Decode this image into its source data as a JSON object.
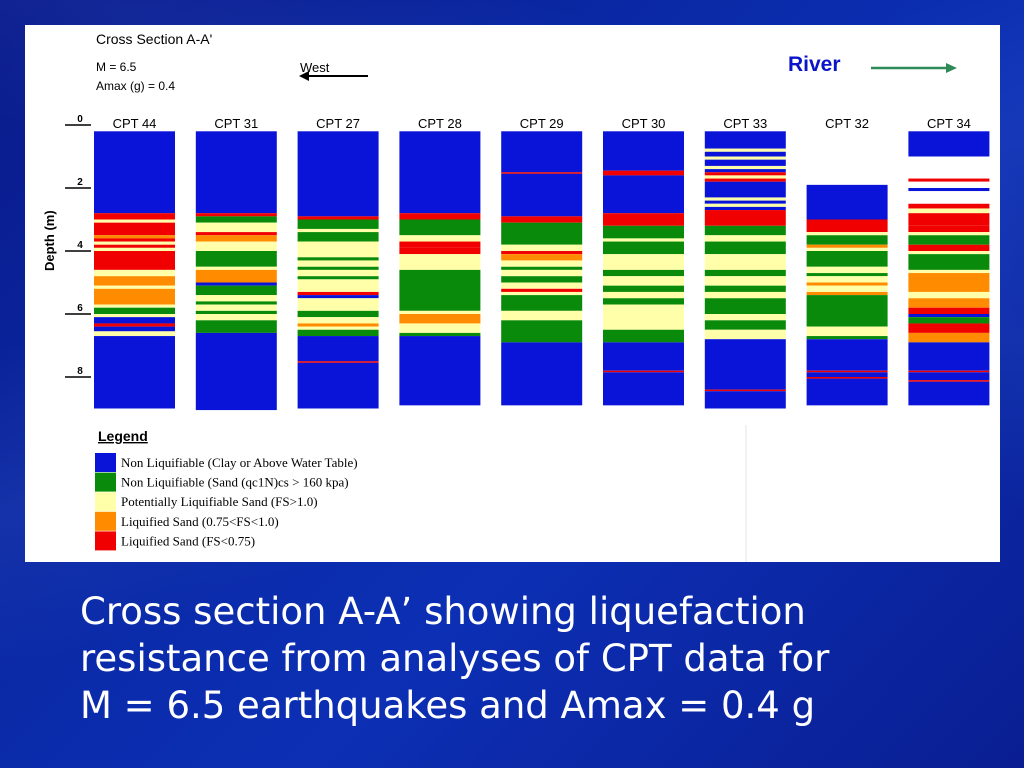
{
  "figure": {
    "title": "Cross Section A-A'",
    "magnitude_label": "M = 6.5",
    "amax_label": "Amax (g) = 0.4",
    "direction_label": "West",
    "river_label": "River",
    "depth_axis_label": "Depth (m)",
    "depth_ticks": [
      "0",
      "2",
      "4",
      "6",
      "8"
    ]
  },
  "colors": {
    "B": "#0a14d8",
    "G": "#0a8a0a",
    "Y": "#ffffaa",
    "O": "#ff8c00",
    "R": "#f00000",
    "river_arrow": "#2e8b57"
  },
  "legend": {
    "title": "Legend",
    "items": [
      {
        "key": "B",
        "label": "Non Liquifiable (Clay or Above Water Table)"
      },
      {
        "key": "G",
        "label": "Non Liquifiable (Sand (qc1N)cs > 160 kpa)"
      },
      {
        "key": "Y",
        "label": "Potentially Liquifiable Sand (FS>1.0)"
      },
      {
        "key": "O",
        "label": "Liquified Sand    (0.75<FS<1.0)"
      },
      {
        "key": "R",
        "label": "Liquified Sand    (FS<0.75)"
      }
    ]
  },
  "chart_data": {
    "type": "table",
    "title": "Cross Section A-A'",
    "ylabel": "Depth (m)",
    "depth_range": [
      0,
      9
    ],
    "units": "m",
    "columns": [
      {
        "name": "CPT 44",
        "top": 0.2,
        "bottom": 9.0,
        "layers": [
          [
            0.2,
            2.8,
            "B"
          ],
          [
            2.8,
            3.0,
            "R"
          ],
          [
            3.0,
            3.1,
            "Y"
          ],
          [
            3.1,
            3.5,
            "R"
          ],
          [
            3.5,
            3.6,
            "O"
          ],
          [
            3.6,
            3.7,
            "R"
          ],
          [
            3.7,
            3.8,
            "Y"
          ],
          [
            3.8,
            3.9,
            "R"
          ],
          [
            3.9,
            4.0,
            "Y"
          ],
          [
            4.0,
            4.6,
            "R"
          ],
          [
            4.6,
            4.8,
            "Y"
          ],
          [
            4.8,
            5.1,
            "O"
          ],
          [
            5.1,
            5.2,
            "Y"
          ],
          [
            5.2,
            5.7,
            "O"
          ],
          [
            5.7,
            5.8,
            "Y"
          ],
          [
            5.8,
            6.0,
            "G"
          ],
          [
            6.0,
            6.1,
            "Y"
          ],
          [
            6.1,
            6.3,
            "B"
          ],
          [
            6.3,
            6.4,
            "R"
          ],
          [
            6.4,
            6.55,
            "B"
          ],
          [
            6.55,
            6.7,
            "Y"
          ],
          [
            6.7,
            9.0,
            "B"
          ]
        ]
      },
      {
        "name": "CPT 31",
        "top": 0.2,
        "bottom": 9.05,
        "layers": [
          [
            0.2,
            2.8,
            "B"
          ],
          [
            2.8,
            2.9,
            "R"
          ],
          [
            2.9,
            3.1,
            "G"
          ],
          [
            3.1,
            3.4,
            "Y"
          ],
          [
            3.4,
            3.5,
            "R"
          ],
          [
            3.5,
            3.7,
            "O"
          ],
          [
            3.7,
            3.8,
            "Y"
          ],
          [
            3.8,
            4.0,
            "Y"
          ],
          [
            4.0,
            4.5,
            "G"
          ],
          [
            4.5,
            4.6,
            "Y"
          ],
          [
            4.6,
            5.0,
            "O"
          ],
          [
            5.0,
            5.1,
            "B"
          ],
          [
            5.1,
            5.4,
            "G"
          ],
          [
            5.4,
            5.6,
            "Y"
          ],
          [
            5.6,
            5.7,
            "G"
          ],
          [
            5.7,
            5.9,
            "Y"
          ],
          [
            5.9,
            6.0,
            "G"
          ],
          [
            6.0,
            6.2,
            "Y"
          ],
          [
            6.2,
            6.6,
            "G"
          ],
          [
            6.6,
            9.05,
            "B"
          ]
        ]
      },
      {
        "name": "CPT 27",
        "top": 0.2,
        "bottom": 9.0,
        "layers": [
          [
            0.2,
            2.9,
            "B"
          ],
          [
            2.9,
            3.0,
            "R"
          ],
          [
            3.0,
            3.3,
            "G"
          ],
          [
            3.3,
            3.4,
            "Y"
          ],
          [
            3.4,
            3.7,
            "G"
          ],
          [
            3.7,
            3.9,
            "Y"
          ],
          [
            3.9,
            4.2,
            "Y"
          ],
          [
            4.2,
            4.3,
            "G"
          ],
          [
            4.3,
            4.5,
            "Y"
          ],
          [
            4.5,
            4.6,
            "G"
          ],
          [
            4.6,
            4.8,
            "Y"
          ],
          [
            4.8,
            4.9,
            "G"
          ],
          [
            4.9,
            5.3,
            "Y"
          ],
          [
            5.3,
            5.4,
            "R"
          ],
          [
            5.4,
            5.5,
            "B"
          ],
          [
            5.5,
            5.9,
            "Y"
          ],
          [
            5.9,
            6.1,
            "G"
          ],
          [
            6.1,
            6.3,
            "Y"
          ],
          [
            6.3,
            6.4,
            "O"
          ],
          [
            6.4,
            6.5,
            "Y"
          ],
          [
            6.5,
            6.7,
            "G"
          ],
          [
            6.7,
            7.5,
            "B"
          ],
          [
            7.5,
            7.55,
            "R"
          ],
          [
            7.55,
            9.0,
            "B"
          ]
        ]
      },
      {
        "name": "CPT 28",
        "top": 0.2,
        "bottom": 8.9,
        "layers": [
          [
            0.2,
            2.8,
            "B"
          ],
          [
            2.8,
            3.0,
            "R"
          ],
          [
            3.0,
            3.5,
            "G"
          ],
          [
            3.5,
            3.7,
            "Y"
          ],
          [
            3.7,
            3.9,
            "R"
          ],
          [
            3.9,
            4.1,
            "R"
          ],
          [
            4.1,
            4.6,
            "Y"
          ],
          [
            4.6,
            5.9,
            "G"
          ],
          [
            5.9,
            6.0,
            "Y"
          ],
          [
            6.0,
            6.3,
            "O"
          ],
          [
            6.3,
            6.6,
            "Y"
          ],
          [
            6.6,
            6.7,
            "G"
          ],
          [
            6.7,
            8.9,
            "B"
          ]
        ]
      },
      {
        "name": "CPT 29",
        "top": 0.2,
        "bottom": 8.9,
        "layers": [
          [
            0.2,
            1.5,
            "B"
          ],
          [
            1.5,
            1.55,
            "R"
          ],
          [
            1.55,
            2.9,
            "B"
          ],
          [
            2.9,
            3.1,
            "R"
          ],
          [
            3.1,
            3.8,
            "G"
          ],
          [
            3.8,
            4.0,
            "Y"
          ],
          [
            4.0,
            4.1,
            "R"
          ],
          [
            4.1,
            4.3,
            "O"
          ],
          [
            4.3,
            4.5,
            "Y"
          ],
          [
            4.5,
            4.6,
            "G"
          ],
          [
            4.6,
            4.8,
            "Y"
          ],
          [
            4.8,
            5.0,
            "G"
          ],
          [
            5.0,
            5.2,
            "Y"
          ],
          [
            5.2,
            5.3,
            "R"
          ],
          [
            5.3,
            5.4,
            "Y"
          ],
          [
            5.4,
            5.9,
            "G"
          ],
          [
            5.9,
            6.2,
            "Y"
          ],
          [
            6.2,
            6.9,
            "G"
          ],
          [
            6.9,
            8.9,
            "B"
          ]
        ]
      },
      {
        "name": "CPT 30",
        "top": 0.2,
        "bottom": 8.9,
        "layers": [
          [
            0.2,
            1.45,
            "B"
          ],
          [
            1.45,
            1.6,
            "R"
          ],
          [
            1.6,
            2.8,
            "B"
          ],
          [
            2.8,
            3.2,
            "R"
          ],
          [
            3.2,
            3.6,
            "G"
          ],
          [
            3.6,
            3.7,
            "Y"
          ],
          [
            3.7,
            4.1,
            "G"
          ],
          [
            4.1,
            4.6,
            "Y"
          ],
          [
            4.6,
            4.8,
            "G"
          ],
          [
            4.8,
            5.1,
            "Y"
          ],
          [
            5.1,
            5.3,
            "G"
          ],
          [
            5.3,
            5.5,
            "Y"
          ],
          [
            5.5,
            5.7,
            "G"
          ],
          [
            5.7,
            6.0,
            "Y"
          ],
          [
            6.0,
            6.5,
            "Y"
          ],
          [
            6.5,
            6.9,
            "G"
          ],
          [
            6.9,
            7.8,
            "B"
          ],
          [
            7.8,
            7.85,
            "R"
          ],
          [
            7.85,
            8.9,
            "B"
          ]
        ]
      },
      {
        "name": "CPT 33",
        "top": 0.2,
        "bottom": 9.0,
        "layers": [
          [
            0.2,
            0.75,
            "B"
          ],
          [
            0.75,
            0.85,
            "Y"
          ],
          [
            0.85,
            1.0,
            "B"
          ],
          [
            1.0,
            1.1,
            "Y"
          ],
          [
            1.1,
            1.3,
            "B"
          ],
          [
            1.3,
            1.4,
            "Y"
          ],
          [
            1.4,
            1.5,
            "B"
          ],
          [
            1.5,
            1.6,
            "R"
          ],
          [
            1.6,
            1.7,
            "Y"
          ],
          [
            1.7,
            1.8,
            "R"
          ],
          [
            1.8,
            2.3,
            "B"
          ],
          [
            2.3,
            2.4,
            "Y"
          ],
          [
            2.4,
            2.5,
            "B"
          ],
          [
            2.5,
            2.6,
            "Y"
          ],
          [
            2.6,
            2.7,
            "B"
          ],
          [
            2.7,
            3.2,
            "R"
          ],
          [
            3.2,
            3.5,
            "G"
          ],
          [
            3.5,
            3.7,
            "Y"
          ],
          [
            3.7,
            4.1,
            "G"
          ],
          [
            4.1,
            4.3,
            "Y"
          ],
          [
            4.3,
            4.6,
            "Y"
          ],
          [
            4.6,
            4.8,
            "G"
          ],
          [
            4.8,
            5.1,
            "Y"
          ],
          [
            5.1,
            5.3,
            "G"
          ],
          [
            5.3,
            5.5,
            "Y"
          ],
          [
            5.5,
            6.0,
            "G"
          ],
          [
            6.0,
            6.2,
            "Y"
          ],
          [
            6.2,
            6.5,
            "G"
          ],
          [
            6.5,
            6.8,
            "Y"
          ],
          [
            6.8,
            8.4,
            "B"
          ],
          [
            8.4,
            8.45,
            "R"
          ],
          [
            8.45,
            9.0,
            "B"
          ]
        ]
      },
      {
        "name": "CPT 32",
        "top": 1.9,
        "bottom": 8.9,
        "layers": [
          [
            1.9,
            3.0,
            "B"
          ],
          [
            3.0,
            3.4,
            "R"
          ],
          [
            3.4,
            3.5,
            "Y"
          ],
          [
            3.5,
            3.8,
            "G"
          ],
          [
            3.8,
            3.9,
            "O"
          ],
          [
            3.9,
            4.0,
            "Y"
          ],
          [
            4.0,
            4.5,
            "G"
          ],
          [
            4.5,
            4.7,
            "Y"
          ],
          [
            4.7,
            4.8,
            "G"
          ],
          [
            4.8,
            5.0,
            "Y"
          ],
          [
            5.0,
            5.1,
            "O"
          ],
          [
            5.1,
            5.3,
            "Y"
          ],
          [
            5.3,
            5.4,
            "O"
          ],
          [
            5.4,
            6.4,
            "G"
          ],
          [
            6.4,
            6.7,
            "Y"
          ],
          [
            6.7,
            6.8,
            "G"
          ],
          [
            6.8,
            7.8,
            "B"
          ],
          [
            7.8,
            7.85,
            "R"
          ],
          [
            7.85,
            8.0,
            "B"
          ],
          [
            8.0,
            8.05,
            "R"
          ],
          [
            8.05,
            8.9,
            "B"
          ]
        ]
      },
      {
        "name": "CPT 34",
        "top": 0.2,
        "bottom": 8.9,
        "layers": [
          [
            0.2,
            1.0,
            "B"
          ],
          [
            1.0,
            1.7,
            "W"
          ],
          [
            1.7,
            1.8,
            "R"
          ],
          [
            1.8,
            2.0,
            "W"
          ],
          [
            2.0,
            2.1,
            "B"
          ],
          [
            2.1,
            2.5,
            "W"
          ],
          [
            2.5,
            2.65,
            "R"
          ],
          [
            2.65,
            2.8,
            "Y"
          ],
          [
            2.8,
            3.2,
            "R"
          ],
          [
            3.2,
            3.4,
            "R"
          ],
          [
            3.4,
            3.5,
            "Y"
          ],
          [
            3.5,
            3.8,
            "G"
          ],
          [
            3.8,
            4.0,
            "R"
          ],
          [
            4.0,
            4.1,
            "Y"
          ],
          [
            4.1,
            4.6,
            "G"
          ],
          [
            4.6,
            4.7,
            "Y"
          ],
          [
            4.7,
            5.3,
            "O"
          ],
          [
            5.3,
            5.5,
            "Y"
          ],
          [
            5.5,
            5.8,
            "O"
          ],
          [
            5.8,
            6.0,
            "R"
          ],
          [
            6.0,
            6.1,
            "B"
          ],
          [
            6.1,
            6.3,
            "G"
          ],
          [
            6.3,
            6.6,
            "R"
          ],
          [
            6.6,
            6.9,
            "O"
          ],
          [
            6.9,
            7.8,
            "B"
          ],
          [
            7.8,
            7.85,
            "R"
          ],
          [
            7.85,
            8.1,
            "B"
          ],
          [
            8.1,
            8.15,
            "R"
          ],
          [
            8.15,
            8.9,
            "B"
          ]
        ]
      }
    ]
  },
  "caption": {
    "line1": "Cross section A-A’ showing liquefaction",
    "line2": "resistance from analyses of CPT data for",
    "line3": "M = 6.5 earthquakes and Amax = 0.4 g"
  }
}
